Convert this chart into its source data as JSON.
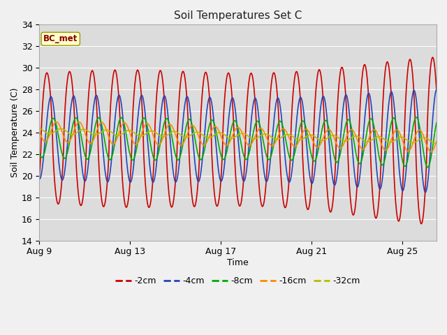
{
  "title": "Soil Temperatures Set C",
  "xlabel": "Time",
  "ylabel": "Soil Temperature (C)",
  "ylim": [
    14,
    34
  ],
  "yticks": [
    14,
    16,
    18,
    20,
    22,
    24,
    26,
    28,
    30,
    32,
    34
  ],
  "xtick_labels": [
    "Aug 9",
    "Aug 13",
    "Aug 17",
    "Aug 21",
    "Aug 25"
  ],
  "xtick_positions": [
    0,
    4,
    8,
    12,
    16
  ],
  "xlim": [
    0,
    17.5
  ],
  "fig_bg_color": "#f0f0f0",
  "plot_bg_color": "#dcdcdc",
  "grid_color": "#ffffff",
  "annotation_text": "BC_met",
  "annotation_fg": "#8B0000",
  "annotation_bg": "#ffffcc",
  "annotation_edge": "#999900",
  "legend_labels": [
    "-2cm",
    "-4cm",
    "-8cm",
    "-16cm",
    "-32cm"
  ],
  "line_colors": [
    "#cc0000",
    "#2244bb",
    "#00aa00",
    "#ff8800",
    "#bbbb00"
  ],
  "title_fontsize": 11,
  "axis_label_fontsize": 9,
  "tick_fontsize": 9
}
